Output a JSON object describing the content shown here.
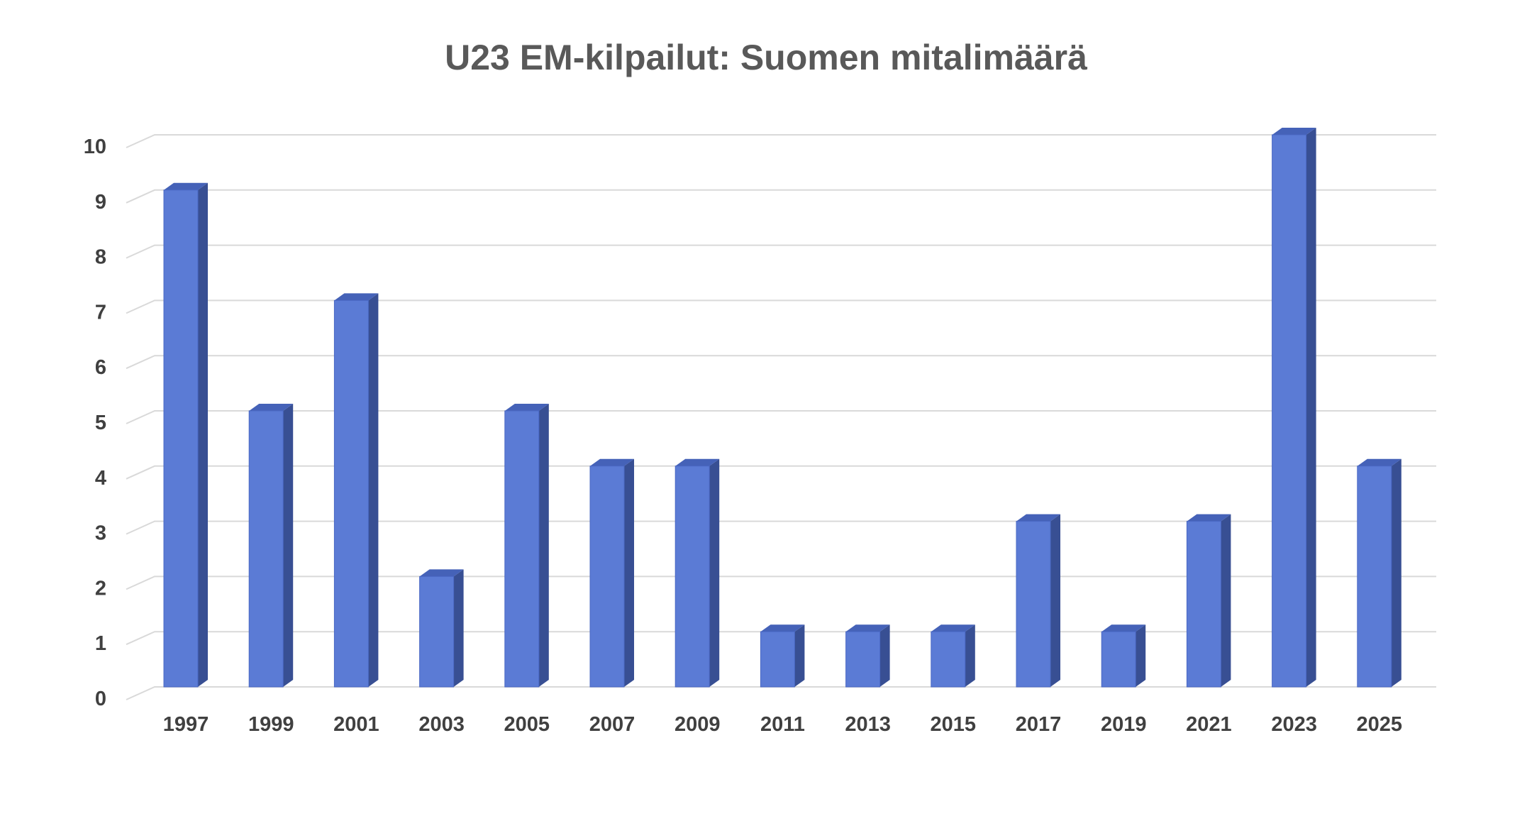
{
  "chart_data": {
    "type": "bar",
    "title": "U23 EM-kilpailut: Suomen mitalimäärä",
    "xlabel": "",
    "ylabel": "",
    "categories": [
      "1997",
      "1999",
      "2001",
      "2003",
      "2005",
      "2007",
      "2009",
      "2011",
      "2013",
      "2015",
      "2017",
      "2019",
      "2021",
      "2023",
      "2025"
    ],
    "values": [
      9,
      5,
      7,
      2,
      5,
      4,
      4,
      1,
      1,
      1,
      3,
      1,
      3,
      10,
      4
    ],
    "y_ticks": [
      "0",
      "1",
      "2",
      "3",
      "4",
      "5",
      "6",
      "7",
      "8",
      "9",
      "10"
    ],
    "ylim": [
      0,
      10
    ],
    "grid": true,
    "legend": "none",
    "style": "3d-column",
    "colors": {
      "bar_front": "#5b7bd5",
      "bar_side": "#384f93",
      "bar_top": "#4562b8",
      "grid": "#d9d9d9",
      "title": "#595959",
      "tick_label": "#404040"
    }
  }
}
